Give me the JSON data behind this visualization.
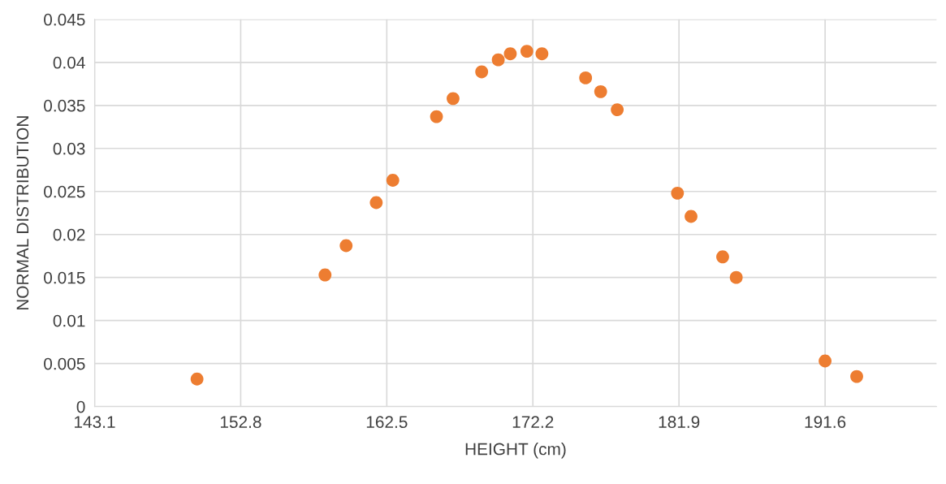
{
  "chart_data": {
    "type": "scatter",
    "xlabel": "HEIGHT (cm)",
    "ylabel": "NORMAL DISTRIBUTION",
    "x": [
      149.9,
      158.4,
      159.8,
      161.8,
      162.9,
      165.8,
      166.9,
      168.8,
      169.9,
      170.7,
      171.8,
      172.8,
      175.7,
      176.7,
      177.8,
      181.8,
      182.7,
      184.8,
      185.7,
      191.6,
      193.7
    ],
    "series": [
      {
        "color": "#ed7d31",
        "values": [
          0.0032,
          0.0153,
          0.0187,
          0.0237,
          0.0263,
          0.0337,
          0.0358,
          0.0389,
          0.0403,
          0.041,
          0.0413,
          0.041,
          0.0382,
          0.0366,
          0.0345,
          0.0248,
          0.0221,
          0.0174,
          0.015,
          0.0053,
          0.0035
        ]
      }
    ],
    "xlim": [
      143.1,
      199.0
    ],
    "xticks": [
      143.1,
      152.8,
      162.5,
      172.2,
      181.9,
      191.6
    ],
    "ylim": [
      0,
      0.045
    ],
    "yticks": [
      0,
      0.005,
      0.01,
      0.015,
      0.02,
      0.025,
      0.03,
      0.035,
      0.04,
      0.045
    ],
    "grid": true,
    "marker": "circle"
  }
}
